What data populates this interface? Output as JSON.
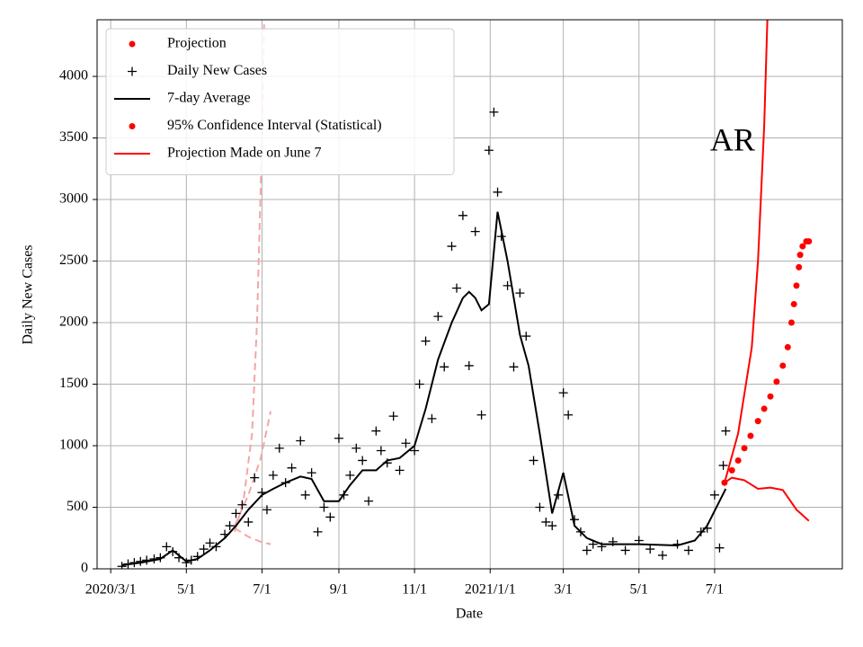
{
  "chart_data": {
    "type": "line",
    "title": "AR",
    "title_position": {
      "x": "2021-07-01",
      "y": 3460
    },
    "x_label": "Date",
    "y_label": "Daily New Cases",
    "xlim": [
      "2020-02-19",
      "2021-10-12"
    ],
    "ylim": [
      0,
      4460
    ],
    "xticks": [
      {
        "value": "2020-03-01",
        "label": "2020/3/1"
      },
      {
        "value": "2020-05-01",
        "label": "5/1"
      },
      {
        "value": "2020-07-01",
        "label": "7/1"
      },
      {
        "value": "2020-09-01",
        "label": "9/1"
      },
      {
        "value": "2020-11-01",
        "label": "11/1"
      },
      {
        "value": "2021-01-01",
        "label": "2021/1/1"
      },
      {
        "value": "2021-03-01",
        "label": "3/1"
      },
      {
        "value": "2021-05-01",
        "label": "5/1"
      },
      {
        "value": "2021-07-01",
        "label": "7/1"
      }
    ],
    "yticks": [
      0,
      500,
      1000,
      1500,
      2000,
      2500,
      3000,
      3500,
      4000
    ],
    "grid": true,
    "legend_position": "upper left",
    "legend": [
      {
        "label": "Projection",
        "color": "#ff0000",
        "marker": "dot"
      },
      {
        "label": "Daily New Cases",
        "color": "#000000",
        "marker": "plus"
      },
      {
        "label": "7-day Average",
        "color": "#000000",
        "marker": "line"
      },
      {
        "label": "95% Confidence Interval (Statistical)",
        "color": "#ff0000",
        "marker": "dot"
      },
      {
        "label": "Projection Made on June 7",
        "color": "#ff0000",
        "marker": "line"
      }
    ],
    "series": [
      {
        "style": "dashed",
        "color": "#f4a6a6",
        "x": [
          "2020-06-09",
          "2020-06-16",
          "2020-06-23",
          "2020-06-27",
          "2020-07-01",
          "2020-07-03"
        ],
        "values": [
          300,
          550,
          1100,
          2000,
          3500,
          4600
        ]
      },
      {
        "style": "dashed",
        "color": "#f4a6a6",
        "x": [
          "2020-06-09",
          "2020-06-20",
          "2020-06-30",
          "2020-07-08"
        ],
        "values": [
          350,
          600,
          900,
          1280
        ]
      },
      {
        "style": "dashed",
        "color": "#f4a6a6",
        "x": [
          "2020-06-09",
          "2020-06-20",
          "2020-06-30",
          "2020-07-08"
        ],
        "values": [
          330,
          260,
          220,
          200
        ]
      },
      {
        "style": "plus",
        "color": "#000000",
        "x": [
          "2020-03-10",
          "2020-03-15",
          "2020-03-20",
          "2020-03-25",
          "2020-03-30",
          "2020-04-05",
          "2020-04-10",
          "2020-04-15",
          "2020-04-20",
          "2020-04-25",
          "2020-05-01",
          "2020-05-05",
          "2020-05-10",
          "2020-05-15",
          "2020-05-20",
          "2020-05-25",
          "2020-06-01",
          "2020-06-05",
          "2020-06-10",
          "2020-06-15",
          "2020-06-20",
          "2020-06-25",
          "2020-07-01",
          "2020-07-05",
          "2020-07-10",
          "2020-07-15",
          "2020-07-20",
          "2020-07-25",
          "2020-08-01",
          "2020-08-05",
          "2020-08-10",
          "2020-08-15",
          "2020-08-20",
          "2020-08-25",
          "2020-09-01",
          "2020-09-05",
          "2020-09-10",
          "2020-09-15",
          "2020-09-20",
          "2020-09-25",
          "2020-10-01",
          "2020-10-05",
          "2020-10-10",
          "2020-10-15",
          "2020-10-20",
          "2020-10-25",
          "2020-11-01",
          "2020-11-05",
          "2020-11-10",
          "2020-11-15",
          "2020-11-20",
          "2020-11-25",
          "2020-12-01",
          "2020-12-05",
          "2020-12-10",
          "2020-12-15",
          "2020-12-20",
          "2020-12-25",
          "2020-12-31",
          "2021-01-04",
          "2021-01-07",
          "2021-01-10",
          "2021-01-15",
          "2021-01-20",
          "2021-01-25",
          "2021-01-30",
          "2021-02-05",
          "2021-02-10",
          "2021-02-15",
          "2021-02-20",
          "2021-02-25",
          "2021-03-01",
          "2021-03-05",
          "2021-03-10",
          "2021-03-15",
          "2021-03-20",
          "2021-03-25",
          "2021-04-01",
          "2021-04-10",
          "2021-04-20",
          "2021-05-01",
          "2021-05-10",
          "2021-05-20",
          "2021-06-01",
          "2021-06-10",
          "2021-06-20",
          "2021-06-25",
          "2021-07-01",
          "2021-07-05",
          "2021-07-08",
          "2021-07-10"
        ],
        "values": [
          20,
          40,
          50,
          60,
          70,
          80,
          90,
          180,
          140,
          90,
          50,
          70,
          100,
          160,
          210,
          180,
          280,
          350,
          450,
          520,
          380,
          740,
          620,
          480,
          760,
          980,
          700,
          820,
          1040,
          600,
          780,
          300,
          500,
          420,
          1060,
          600,
          760,
          980,
          880,
          550,
          1120,
          960,
          860,
          1240,
          800,
          1020,
          960,
          1500,
          1850,
          1220,
          2050,
          1640,
          2620,
          2280,
          2870,
          1650,
          2740,
          1250,
          3400,
          3710,
          3060,
          2700,
          2300,
          1640,
          2240,
          1890,
          880,
          500,
          380,
          350,
          600,
          1430,
          1250,
          400,
          300,
          150,
          200,
          180,
          220,
          150,
          230,
          160,
          110,
          200,
          150,
          300,
          330,
          600,
          170,
          840,
          1120
        ]
      },
      {
        "style": "line",
        "color": "#000000",
        "x": [
          "2020-03-10",
          "2020-03-25",
          "2020-04-10",
          "2020-04-20",
          "2020-05-01",
          "2020-05-10",
          "2020-05-20",
          "2020-06-01",
          "2020-06-10",
          "2020-06-20",
          "2020-07-01",
          "2020-07-10",
          "2020-07-20",
          "2020-08-01",
          "2020-08-10",
          "2020-08-20",
          "2020-09-01",
          "2020-09-10",
          "2020-09-20",
          "2020-10-01",
          "2020-10-10",
          "2020-10-20",
          "2020-11-01",
          "2020-11-10",
          "2020-11-20",
          "2020-12-01",
          "2020-12-10",
          "2020-12-15",
          "2020-12-20",
          "2020-12-25",
          "2020-12-31",
          "2021-01-07",
          "2021-01-15",
          "2021-01-25",
          "2021-02-01",
          "2021-02-10",
          "2021-02-20",
          "2021-03-01",
          "2021-03-10",
          "2021-03-20",
          "2021-04-01",
          "2021-05-01",
          "2021-06-01",
          "2021-06-15",
          "2021-06-25",
          "2021-07-05",
          "2021-07-10"
        ],
        "values": [
          30,
          50,
          80,
          150,
          60,
          80,
          150,
          250,
          350,
          480,
          600,
          650,
          700,
          750,
          730,
          550,
          550,
          680,
          800,
          800,
          880,
          900,
          1000,
          1300,
          1700,
          2000,
          2200,
          2250,
          2200,
          2100,
          2150,
          2900,
          2500,
          1900,
          1650,
          1100,
          450,
          780,
          350,
          250,
          200,
          200,
          190,
          230,
          350,
          550,
          650
        ]
      },
      {
        "style": "dot",
        "color": "#ff0000",
        "x": [
          "2021-07-09",
          "2021-07-15",
          "2021-07-20",
          "2021-07-25",
          "2021-07-30",
          "2021-08-05",
          "2021-08-10",
          "2021-08-15",
          "2021-08-20",
          "2021-08-25",
          "2021-08-29",
          "2021-09-01",
          "2021-09-03",
          "2021-09-05",
          "2021-09-07",
          "2021-09-08",
          "2021-09-10",
          "2021-09-13",
          "2021-09-15"
        ],
        "values": [
          700,
          800,
          880,
          980,
          1080,
          1200,
          1300,
          1400,
          1520,
          1650,
          1800,
          2000,
          2150,
          2300,
          2450,
          2550,
          2620,
          2660,
          2660
        ]
      },
      {
        "style": "line",
        "color": "#ff0000",
        "x": [
          "2021-07-09",
          "2021-07-20",
          "2021-07-31",
          "2021-08-05",
          "2021-08-10",
          "2021-08-13"
        ],
        "values": [
          700,
          1100,
          1800,
          2500,
          3600,
          4600
        ]
      },
      {
        "style": "line",
        "color": "#ff0000",
        "x": [
          "2021-07-09",
          "2021-07-15",
          "2021-07-25",
          "2021-08-05",
          "2021-08-15",
          "2021-08-25",
          "2021-09-05",
          "2021-09-15"
        ],
        "values": [
          700,
          740,
          720,
          650,
          660,
          640,
          480,
          390
        ]
      }
    ]
  }
}
